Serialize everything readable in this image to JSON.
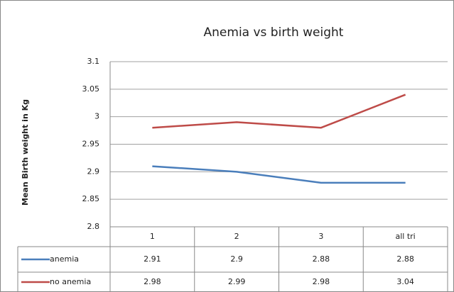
{
  "chart_data": {
    "type": "line",
    "title": "Anemia vs birth weight",
    "y_label": "Mean Birth weight in Kg",
    "categories": [
      "1",
      "2",
      "3",
      "all tri"
    ],
    "series": [
      {
        "name": "anemia",
        "color": "#4a7ebb",
        "values": [
          2.91,
          2.9,
          2.88,
          2.88
        ]
      },
      {
        "name": "no anemia",
        "color": "#be4b48",
        "values": [
          2.98,
          2.99,
          2.98,
          3.04
        ]
      }
    ],
    "ylim": [
      2.8,
      3.1
    ],
    "yticks": [
      2.8,
      2.85,
      2.9,
      2.95,
      3,
      3.05,
      3.1
    ],
    "grid": true,
    "data_table": true
  }
}
